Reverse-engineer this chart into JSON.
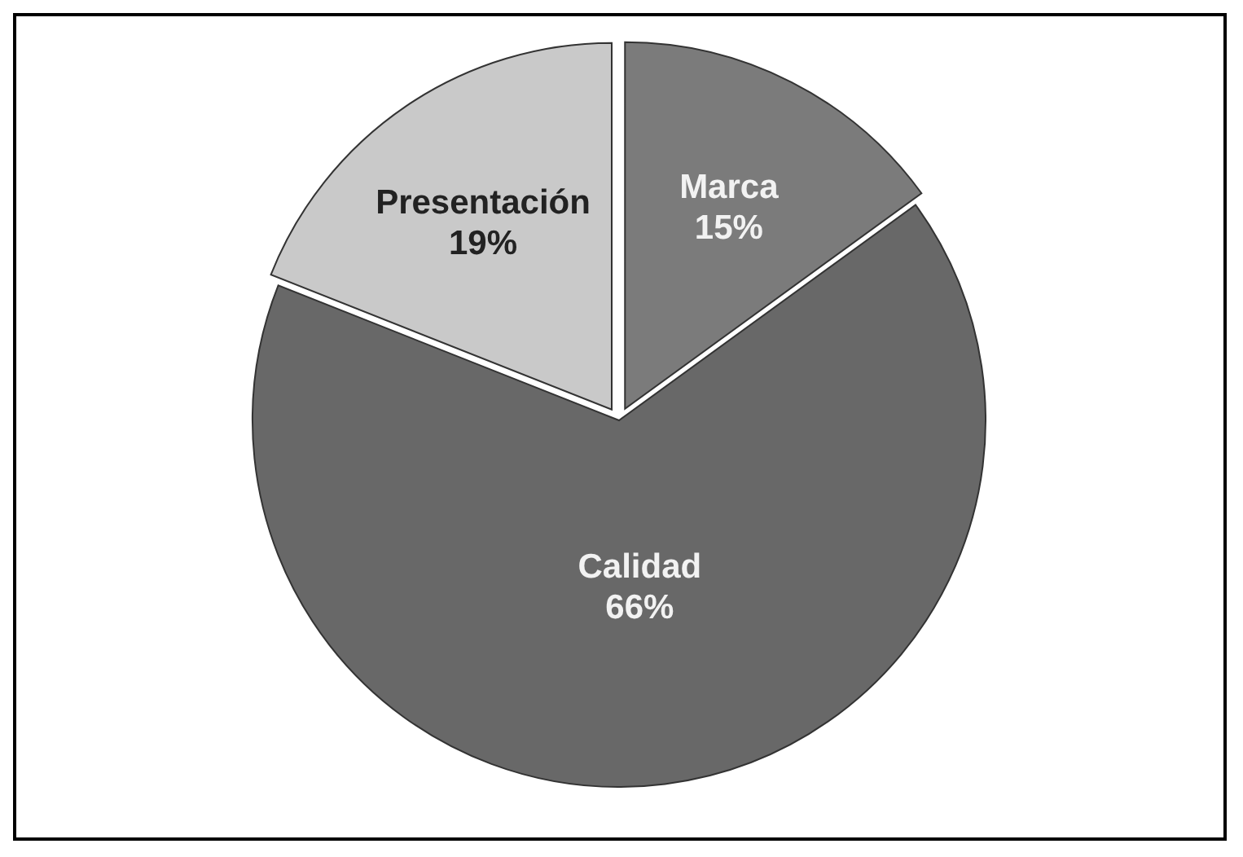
{
  "chart_data": {
    "type": "pie",
    "categories": [
      "Marca",
      "Calidad",
      "Presentación"
    ],
    "values": [
      15,
      66,
      19
    ],
    "colors": [
      "#7b7b7b",
      "#686868",
      "#c9c9c9"
    ],
    "value_labels": [
      "15%",
      "66%",
      "19%"
    ]
  }
}
